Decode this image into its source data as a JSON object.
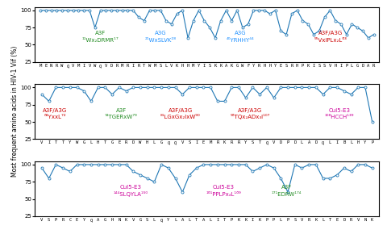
{
  "chart_data": [
    {
      "type": "line",
      "marker": "o",
      "categories": [
        "M",
        "E",
        "N",
        "R",
        "W",
        "Q",
        "V",
        "M",
        "I",
        "V",
        "W",
        "Q",
        "V",
        "D",
        "R",
        "M",
        "R",
        "I",
        "R",
        "T",
        "W",
        "M",
        "S",
        "L",
        "V",
        "K",
        "H",
        "H",
        "M",
        "Y",
        "I",
        "S",
        "K",
        "K",
        "A",
        "K",
        "G",
        "W",
        "F",
        "Y",
        "R",
        "H",
        "H",
        "Y",
        "E",
        "S",
        "R",
        "H",
        "P",
        "K",
        "I",
        "S",
        "S",
        "V",
        "H",
        "I",
        "P",
        "L",
        "G",
        "D",
        "A",
        "R"
      ],
      "values": [
        100,
        100,
        100,
        100,
        100,
        100,
        100,
        100,
        100,
        100,
        75,
        100,
        100,
        100,
        100,
        100,
        100,
        100,
        90,
        85,
        100,
        100,
        100,
        85,
        80,
        95,
        100,
        60,
        85,
        100,
        85,
        75,
        60,
        85,
        100,
        85,
        100,
        75,
        80,
        100,
        100,
        100,
        95,
        100,
        70,
        65,
        95,
        100,
        85,
        80,
        65,
        70,
        90,
        100,
        85,
        80,
        65,
        80,
        75,
        70,
        60,
        65
      ],
      "ylim": [
        25,
        105
      ],
      "yticks": [
        25,
        50,
        75,
        100
      ],
      "annotations": [
        {
          "x": 10.98,
          "y": 63.4,
          "text": "A3F",
          "color": "#228B22"
        },
        {
          "x": 10.98,
          "y": 53,
          "text": "¹¹Wx₂DRMR¹⁷",
          "color": "#228B22"
        },
        {
          "x": 21.96,
          "y": 63.4,
          "text": "A3G",
          "color": "#1E90FF"
        },
        {
          "x": 21.96,
          "y": 53,
          "text": "²¹WxSLVK²⁸",
          "color": "#1E90FF"
        },
        {
          "x": 36.6,
          "y": 63.4,
          "text": "A3G",
          "color": "#1E90FF"
        },
        {
          "x": 36.6,
          "y": 53,
          "text": "⁴⁰YRHHY⁴⁴",
          "color": "#1E90FF"
        },
        {
          "x": 53.07,
          "y": 63.4,
          "text": "A3F/A3G",
          "color": "#cc0000"
        },
        {
          "x": 53.07,
          "y": 53,
          "text": "⁵⁵VxlPLx₂L⁶³",
          "color": "#cc0000"
        }
      ]
    },
    {
      "type": "line",
      "marker": "o",
      "categories": [
        "V",
        "I",
        "T",
        "T",
        "Y",
        "W",
        "G",
        "L",
        "H",
        "T",
        "G",
        "E",
        "R",
        "D",
        "W",
        "H",
        "L",
        "G",
        "Q",
        "Q",
        "V",
        "S",
        "I",
        "E",
        "M",
        "R",
        "K",
        "R",
        "R",
        "Y",
        "S",
        "T",
        "Q",
        "V",
        "D",
        "P",
        "D",
        "L",
        "A",
        "D",
        "Q",
        "L",
        "I",
        "B",
        "L",
        "H",
        "Y",
        "P"
      ],
      "values": [
        90,
        80,
        100,
        100,
        100,
        100,
        95,
        80,
        100,
        100,
        90,
        100,
        95,
        100,
        100,
        100,
        100,
        100,
        100,
        100,
        90,
        100,
        100,
        100,
        100,
        80,
        80,
        100,
        100,
        85,
        100,
        90,
        100,
        85,
        100,
        100,
        100,
        100,
        100,
        100,
        90,
        100,
        100,
        95,
        90,
        100,
        100,
        50
      ],
      "ylim": [
        25,
        105
      ],
      "yticks": [
        25,
        50,
        75,
        100
      ],
      "ylabel": "Most frequent amino acids in HIV-1 Vif (%)",
      "annotations": [
        {
          "x": 1.88,
          "y": 63.4,
          "text": "A3F/A3G",
          "color": "#cc0000"
        },
        {
          "x": 1.88,
          "y": 53,
          "text": "⁶⁴YxxL⁷²",
          "color": "#cc0000"
        },
        {
          "x": 11.28,
          "y": 63.4,
          "text": "A3F",
          "color": "#228B22"
        },
        {
          "x": 11.28,
          "y": 53,
          "text": "⁷⁴TGERxW⁷⁹",
          "color": "#228B22"
        },
        {
          "x": 19.74,
          "y": 63.4,
          "text": "A3F/A3G",
          "color": "#cc0000"
        },
        {
          "x": 19.74,
          "y": 53,
          "text": "⁸¹LGxGx₂lxW⁹⁰",
          "color": "#cc0000"
        },
        {
          "x": 29.61,
          "y": 63.4,
          "text": "A3F/A3G",
          "color": "#cc0000"
        },
        {
          "x": 29.61,
          "y": 53,
          "text": "⁹⁶TQx₂ADx₃l¹⁰⁷",
          "color": "#cc0000"
        },
        {
          "x": 42.3,
          "y": 63.4,
          "text": "Cul5-E3",
          "color": "#cc0099"
        },
        {
          "x": 42.3,
          "y": 53,
          "text": "¹⁰⁸HCCH¹³⁹",
          "color": "#cc0099"
        }
      ]
    },
    {
      "type": "line",
      "marker": "o",
      "categories": [
        "V",
        "S",
        "P",
        "R",
        "C",
        "E",
        "Y",
        "Q",
        "A",
        "G",
        "H",
        "N",
        "K",
        "V",
        "G",
        "S",
        "L",
        "Q",
        "Y",
        "L",
        "A",
        "L",
        "T",
        "A",
        "L",
        "I",
        "T",
        "P",
        "K",
        "K",
        "I",
        "K",
        "P",
        "P",
        "L",
        "P",
        "S",
        "V",
        "R",
        "K",
        "L",
        "T",
        "E",
        "D",
        "R",
        "V",
        "N",
        "K"
      ],
      "values": [
        95,
        80,
        100,
        95,
        90,
        100,
        100,
        100,
        100,
        100,
        100,
        100,
        100,
        90,
        85,
        80,
        75,
        100,
        95,
        80,
        60,
        85,
        95,
        100,
        100,
        100,
        100,
        100,
        100,
        100,
        90,
        95,
        100,
        95,
        80,
        60,
        100,
        95,
        100,
        100,
        80,
        80,
        85,
        95,
        90,
        100,
        100,
        95
      ],
      "ylim": [
        25,
        105
      ],
      "yticks": [
        25,
        50,
        75,
        100
      ],
      "annotations": [
        {
          "x": 12.69,
          "y": 63.4,
          "text": "Cul5-E3",
          "color": "#cc0099"
        },
        {
          "x": 12.69,
          "y": 53,
          "text": "¹⁴⁴SLQYLA¹⁵⁰",
          "color": "#cc0099"
        },
        {
          "x": 25.85,
          "y": 63.4,
          "text": "Cul5-E3",
          "color": "#cc0099"
        },
        {
          "x": 25.85,
          "y": 53,
          "text": "¹⁶¹PPLPx₄L¹⁶⁹",
          "color": "#cc0099"
        },
        {
          "x": 34.78,
          "y": 63.4,
          "text": "A3F",
          "color": "#228B22"
        },
        {
          "x": 34.78,
          "y": 53,
          "text": "¹⁷¹EDRW¹⁷⁴",
          "color": "#228B22"
        }
      ]
    }
  ]
}
